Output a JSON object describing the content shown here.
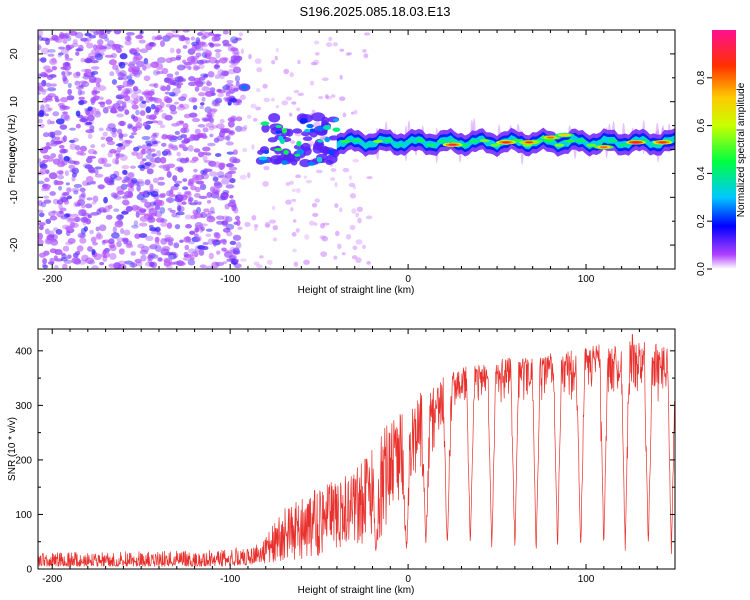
{
  "title": "S196.2025.085.18.03.E13",
  "chart_data": [
    {
      "type": "heatmap",
      "xlabel": "Height of straight line (km)",
      "ylabel": "Frequency (Hz)",
      "xlim": [
        -208,
        150
      ],
      "ylim": [
        -25,
        25
      ],
      "xticks": [
        -200,
        -100,
        0,
        100
      ],
      "yticks": [
        -20,
        -10,
        0,
        10,
        20
      ],
      "colorbar": {
        "label": "Normalized spectral amplitude",
        "range": [
          0,
          1
        ],
        "ticks": [
          0,
          0.2,
          0.4,
          0.6,
          0.8
        ],
        "tick_labels": [
          "0.0",
          "0.2",
          "0.4",
          "0.6",
          "0.8"
        ],
        "colormap": "rainbow (violet → blue → cyan → green → yellow → red → magenta)"
      },
      "features": [
        {
          "x_range": [
            -208,
            -95
          ],
          "description": "scattered low-amplitude noise across all frequencies"
        },
        {
          "x": -92,
          "frequency": 13,
          "amplitude": 0.25
        },
        {
          "x_range": [
            -85,
            -40
          ],
          "frequency_range": [
            -3,
            7
          ],
          "amplitude_max": 0.45
        },
        {
          "x_range": [
            -40,
            150
          ],
          "frequency": 1.5,
          "description": "continuous narrow band",
          "amplitude_max": 0.95
        }
      ],
      "band_hotspots": [
        {
          "x": 25,
          "frequency": 1,
          "amplitude": 0.9
        },
        {
          "x": 55,
          "frequency": 1.5,
          "amplitude": 0.9
        },
        {
          "x": 68,
          "frequency": 1.5,
          "amplitude": 0.85
        },
        {
          "x": 80,
          "frequency": 2.5,
          "amplitude": 0.8
        },
        {
          "x": 88,
          "frequency": 3,
          "amplitude": 0.7
        },
        {
          "x": 110,
          "frequency": 0.5,
          "amplitude": 0.8
        },
        {
          "x": 128,
          "frequency": 1.5,
          "amplitude": 0.95
        },
        {
          "x": 143,
          "frequency": 1.5,
          "amplitude": 0.9
        }
      ]
    },
    {
      "type": "line",
      "xlabel": "Height of straight line (km)",
      "ylabel": "SNR (10 * v/v)",
      "xlim": [
        -208,
        150
      ],
      "ylim": [
        0,
        440
      ],
      "xticks": [
        -200,
        -100,
        0,
        100
      ],
      "yticks": [
        0,
        100,
        200,
        300,
        400
      ],
      "color": "#e8302c",
      "envelope": [
        {
          "x": -208,
          "low": 5,
          "high": 30
        },
        {
          "x": -100,
          "low": 5,
          "high": 35
        },
        {
          "x": -80,
          "low": 10,
          "high": 60
        },
        {
          "x": -70,
          "low": 15,
          "high": 110
        },
        {
          "x": -50,
          "low": 20,
          "high": 150
        },
        {
          "x": -30,
          "low": 40,
          "high": 180
        },
        {
          "x": -15,
          "low": 60,
          "high": 260
        },
        {
          "x": 0,
          "low": 150,
          "high": 300
        },
        {
          "x": 15,
          "low": 220,
          "high": 350
        },
        {
          "x": 30,
          "low": 300,
          "high": 370
        },
        {
          "x": 60,
          "low": 300,
          "high": 390
        },
        {
          "x": 90,
          "low": 300,
          "high": 400
        },
        {
          "x": 120,
          "low": 300,
          "high": 420
        },
        {
          "x": 150,
          "low": 300,
          "high": 410
        }
      ],
      "dips": [
        {
          "x": -18,
          "y": 20
        },
        {
          "x": -1,
          "y": 15
        },
        {
          "x": 10,
          "y": 25
        },
        {
          "x": 22,
          "y": 20
        },
        {
          "x": 35,
          "y": 25
        },
        {
          "x": 47,
          "y": 20
        },
        {
          "x": 60,
          "y": 25
        },
        {
          "x": 72,
          "y": 20
        },
        {
          "x": 84,
          "y": 25
        },
        {
          "x": 97,
          "y": 20
        },
        {
          "x": 110,
          "y": 25
        },
        {
          "x": 122,
          "y": 20
        },
        {
          "x": 135,
          "y": 25
        },
        {
          "x": 148,
          "y": 20
        }
      ],
      "peak": {
        "x": 126,
        "y": 430
      }
    }
  ]
}
